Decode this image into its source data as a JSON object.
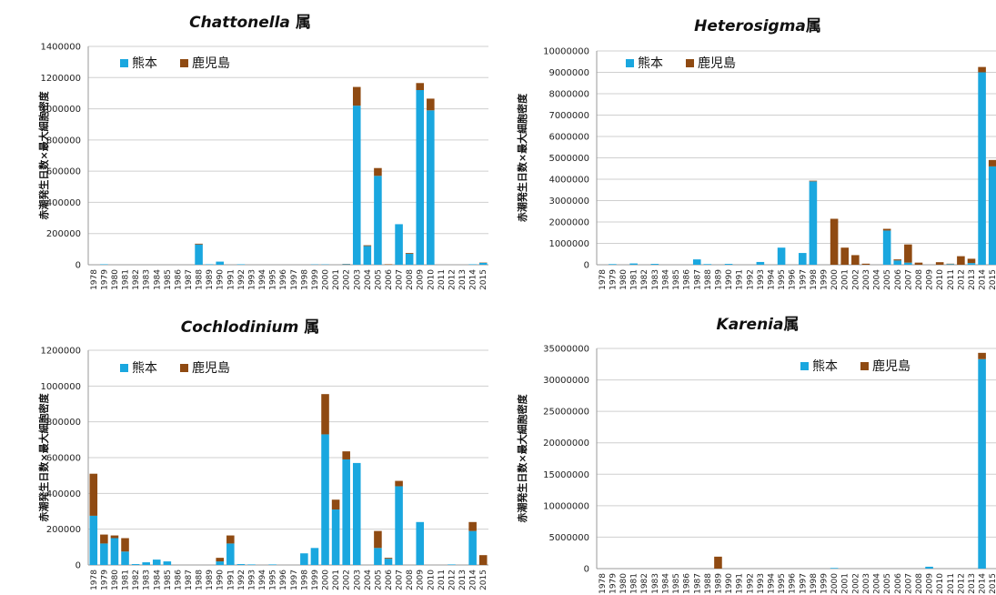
{
  "legend_labels": [
    "熊本",
    "鹿児島"
  ],
  "colors": {
    "kumamoto": "#1aa7df",
    "kagoshima": "#8f4a12",
    "gridline": "#cfcfcf",
    "axis": "#9a9a9a"
  },
  "chart_data": [
    {
      "id": "chattonella",
      "type": "bar",
      "stacked": true,
      "title_italic": "Chattonella",
      "title_suffix": " 属",
      "ylabel": "赤潮発生日数×最大細胞密度",
      "ylim": [
        0,
        1400000
      ],
      "yticks": [
        "0",
        "200000",
        "400000",
        "600000",
        "800000",
        "1000000",
        "1200000",
        "1400000"
      ],
      "grid": true,
      "legend_position": "top-left",
      "categories": [
        "1978",
        "1979",
        "1980",
        "1981",
        "1982",
        "1983",
        "1984",
        "1985",
        "1986",
        "1987",
        "1988",
        "1989",
        "1990",
        "1991",
        "1992",
        "1993",
        "1994",
        "1995",
        "1996",
        "1997",
        "1998",
        "1999",
        "2000",
        "2001",
        "2002",
        "2003",
        "2004",
        "2005",
        "2006",
        "2007",
        "2008",
        "2009",
        "2010",
        "2011",
        "2012",
        "2013",
        "2014",
        "2015"
      ],
      "series": [
        {
          "name": "熊本",
          "values": [
            0,
            3000,
            0,
            0,
            0,
            0,
            0,
            0,
            0,
            0,
            130000,
            3000,
            20000,
            0,
            3000,
            0,
            0,
            0,
            0,
            0,
            0,
            2000,
            2000,
            0,
            3000,
            1020000,
            120000,
            570000,
            0,
            260000,
            70000,
            1120000,
            990000,
            0,
            0,
            0,
            3000,
            12000
          ]
        },
        {
          "name": "鹿児島",
          "values": [
            0,
            0,
            0,
            0,
            0,
            0,
            0,
            0,
            0,
            0,
            5000,
            0,
            0,
            0,
            0,
            0,
            0,
            0,
            0,
            0,
            0,
            0,
            0,
            0,
            2000,
            120000,
            5000,
            50000,
            3000,
            0,
            5000,
            45000,
            75000,
            0,
            0,
            0,
            0,
            2000
          ]
        }
      ]
    },
    {
      "id": "heterosigma",
      "type": "bar",
      "stacked": true,
      "title_italic": "Heterosigma",
      "title_suffix": "属",
      "ylabel": "赤潮発生日数×最大細胞密度",
      "ylim": [
        0,
        10000000
      ],
      "yticks": [
        "0",
        "1000000",
        "2000000",
        "3000000",
        "4000000",
        "5000000",
        "6000000",
        "7000000",
        "8000000",
        "9000000",
        "10000000"
      ],
      "grid": true,
      "legend_position": "top-left",
      "categories": [
        "1978",
        "1979",
        "1980",
        "1981",
        "1982",
        "1983",
        "1984",
        "1985",
        "1986",
        "1987",
        "1988",
        "1989",
        "1990",
        "1991",
        "1992",
        "1993",
        "1994",
        "1995",
        "1996",
        "1997",
        "1998",
        "1999",
        "2000",
        "2001",
        "2002",
        "2003",
        "2004",
        "2005",
        "2006",
        "2007",
        "2008",
        "2009",
        "2010",
        "2011",
        "2012",
        "2013",
        "2014",
        "2015"
      ],
      "series": [
        {
          "name": "熊本",
          "values": [
            0,
            30000,
            0,
            60000,
            0,
            40000,
            0,
            0,
            0,
            250000,
            30000,
            0,
            40000,
            0,
            0,
            130000,
            0,
            800000,
            0,
            550000,
            3900000,
            0,
            0,
            0,
            0,
            0,
            0,
            1600000,
            200000,
            100000,
            0,
            0,
            0,
            30000,
            0,
            80000,
            9000000,
            4600000
          ]
        },
        {
          "name": "鹿児島",
          "values": [
            0,
            0,
            0,
            0,
            0,
            0,
            0,
            0,
            0,
            0,
            0,
            0,
            0,
            0,
            0,
            0,
            0,
            0,
            0,
            0,
            30000,
            0,
            2150000,
            800000,
            450000,
            50000,
            0,
            80000,
            50000,
            850000,
            100000,
            0,
            120000,
            20000,
            400000,
            200000,
            250000,
            300000
          ]
        }
      ]
    },
    {
      "id": "cochlodinium",
      "type": "bar",
      "stacked": true,
      "title_italic": "Cochlodinium",
      "title_suffix": " 属",
      "ylabel": "赤潮発生日数×最大細胞密度",
      "ylim": [
        0,
        1200000
      ],
      "yticks": [
        "0",
        "200000",
        "400000",
        "600000",
        "800000",
        "1000000",
        "1200000"
      ],
      "grid": true,
      "legend_position": "top-left",
      "categories": [
        "1978",
        "1979",
        "1980",
        "1981",
        "1982",
        "1983",
        "1984",
        "1985",
        "1986",
        "1987",
        "1988",
        "1989",
        "1990",
        "1991",
        "1992",
        "1993",
        "1994",
        "1995",
        "1996",
        "1997",
        "1998",
        "1999",
        "2000",
        "2001",
        "2002",
        "2003",
        "2004",
        "2005",
        "2006",
        "2007",
        "2008",
        "2009",
        "2010",
        "2011",
        "2012",
        "2013",
        "2014",
        "2015"
      ],
      "series": [
        {
          "name": "熊本",
          "values": [
            275000,
            120000,
            150000,
            75000,
            5000,
            15000,
            30000,
            20000,
            0,
            0,
            0,
            0,
            20000,
            120000,
            5000,
            3000,
            0,
            3000,
            0,
            0,
            65000,
            95000,
            730000,
            310000,
            590000,
            570000,
            0,
            95000,
            35000,
            440000,
            0,
            240000,
            0,
            0,
            3000,
            0,
            190000,
            0
          ]
        },
        {
          "name": "鹿児島",
          "values": [
            235000,
            50000,
            15000,
            75000,
            0,
            0,
            0,
            0,
            0,
            0,
            0,
            0,
            20000,
            45000,
            0,
            0,
            0,
            0,
            0,
            0,
            0,
            0,
            225000,
            55000,
            45000,
            0,
            0,
            95000,
            5000,
            30000,
            0,
            0,
            0,
            0,
            0,
            0,
            50000,
            55000
          ]
        }
      ]
    },
    {
      "id": "karenia",
      "type": "bar",
      "stacked": true,
      "title_italic": "Karenia",
      "title_suffix": "属",
      "ylabel": "赤潮発生日数×最大細胞密度",
      "ylim": [
        0,
        35000000
      ],
      "yticks": [
        "0",
        "5000000",
        "10000000",
        "15000000",
        "20000000",
        "25000000",
        "30000000",
        "35000000"
      ],
      "grid": true,
      "legend_position": "top-right",
      "categories": [
        "1978",
        "1979",
        "1980",
        "1981",
        "1982",
        "1983",
        "1984",
        "1985",
        "1986",
        "1987",
        "1988",
        "1989",
        "1990",
        "1991",
        "1992",
        "1993",
        "1994",
        "1995",
        "1996",
        "1997",
        "1998",
        "1999",
        "2000",
        "2001",
        "2002",
        "2003",
        "2004",
        "2005",
        "2006",
        "2007",
        "2008",
        "2009",
        "2010",
        "2011",
        "2012",
        "2013",
        "2014",
        "2015"
      ],
      "series": [
        {
          "name": "熊本",
          "values": [
            0,
            0,
            0,
            0,
            0,
            0,
            0,
            0,
            0,
            0,
            0,
            0,
            0,
            0,
            0,
            0,
            0,
            0,
            0,
            0,
            0,
            0,
            100000,
            0,
            0,
            0,
            0,
            0,
            0,
            0,
            0,
            300000,
            0,
            0,
            0,
            0,
            33300000,
            0
          ]
        },
        {
          "name": "鹿児島",
          "values": [
            0,
            0,
            0,
            0,
            0,
            0,
            0,
            0,
            0,
            0,
            0,
            1900000,
            0,
            0,
            0,
            0,
            0,
            0,
            0,
            0,
            0,
            0,
            0,
            0,
            0,
            0,
            0,
            0,
            0,
            0,
            0,
            0,
            0,
            0,
            0,
            0,
            1000000,
            0
          ]
        }
      ]
    }
  ]
}
